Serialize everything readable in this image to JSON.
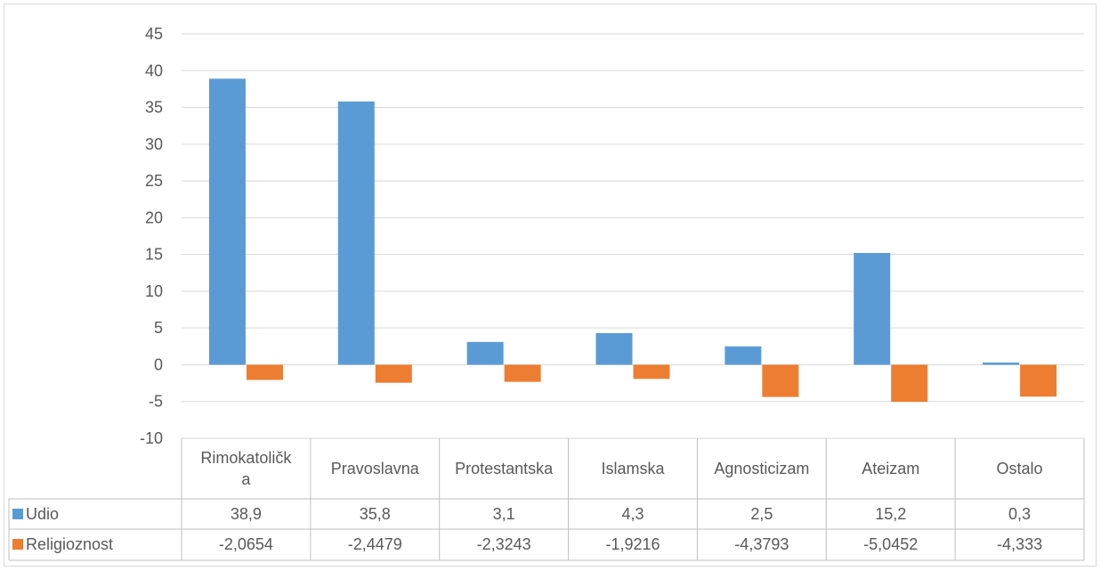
{
  "chart_data": {
    "type": "bar",
    "categories": [
      "Rimokatolička",
      "Pravoslavna",
      "Protestantska",
      "Islamska",
      "Agnosticizam",
      "Ateizam",
      "Ostalo"
    ],
    "category_display": [
      [
        "Rimokatoličk",
        "a"
      ],
      [
        "Pravoslavna"
      ],
      [
        "Protestantska"
      ],
      [
        "Islamska"
      ],
      [
        "Agnosticizam"
      ],
      [
        "Ateizam"
      ],
      [
        "Ostalo"
      ]
    ],
    "series": [
      {
        "name": "Udio",
        "color": "#5b9bd5",
        "values": [
          38.9,
          35.8,
          3.1,
          4.3,
          2.5,
          15.2,
          0.3
        ],
        "labels": [
          "38,9",
          "35,8",
          "3,1",
          "4,3",
          "2,5",
          "15,2",
          "0,3"
        ]
      },
      {
        "name": "Religioznost",
        "color": "#ed7d31",
        "values": [
          -2.0654,
          -2.4479,
          -2.3243,
          -1.9216,
          -4.3793,
          -5.0452,
          -4.333
        ],
        "labels": [
          "-2,0654",
          "-2,4479",
          "-2,3243",
          "-1,9216",
          "-4,3793",
          "-5,0452",
          "-4,333"
        ]
      }
    ],
    "ylim": [
      -10,
      45
    ],
    "yticks": [
      -10,
      -5,
      0,
      5,
      10,
      15,
      20,
      25,
      30,
      35,
      40,
      45
    ],
    "title": "",
    "xlabel": "",
    "ylabel": "",
    "grid": true,
    "legend": "data-table"
  }
}
